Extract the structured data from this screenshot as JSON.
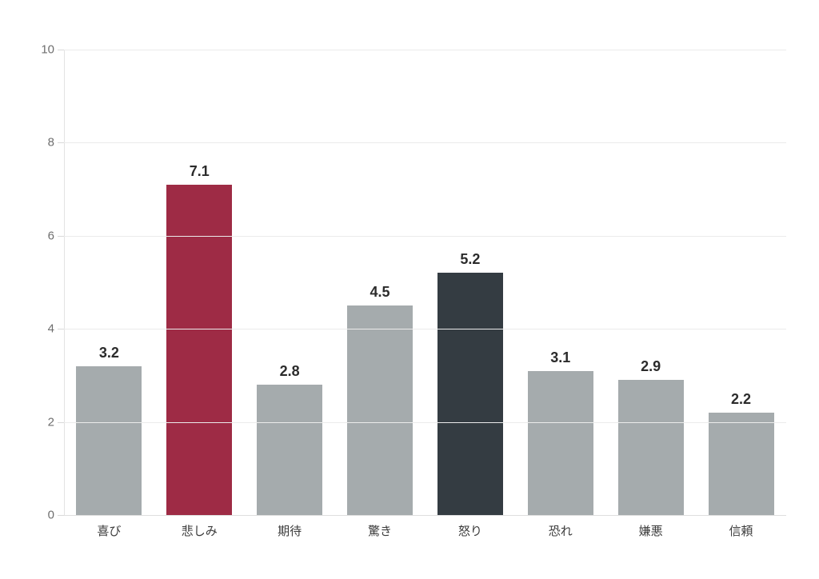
{
  "chart_data": {
    "type": "bar",
    "title": "",
    "xlabel": "",
    "ylabel": "",
    "categories": [
      "喜び",
      "悲しみ",
      "期待",
      "驚き",
      "怒り",
      "恐れ",
      "嫌悪",
      "信頼"
    ],
    "values": [
      3.2,
      7.1,
      2.8,
      4.5,
      5.2,
      3.1,
      2.9,
      2.2
    ],
    "value_labels": [
      "3.2",
      "7.1",
      "2.8",
      "4.5",
      "5.2",
      "3.1",
      "2.9",
      "2.2"
    ],
    "bar_colors": [
      "#a5abad",
      "#9e2b45",
      "#a5abad",
      "#a5abad",
      "#343c42",
      "#a5abad",
      "#a5abad",
      "#a5abad"
    ],
    "default_bar_color": "#a5abad",
    "highlight_color": "#9e2b45",
    "accent_dark_color": "#343c42",
    "ylim": [
      0,
      10
    ],
    "y_ticks": [
      0,
      2,
      4,
      6,
      8,
      10
    ],
    "y_tick_labels": [
      "0",
      "2",
      "4",
      "6",
      "8",
      "10"
    ],
    "grid": true,
    "legend": "none",
    "background_color": "#ffffff"
  }
}
